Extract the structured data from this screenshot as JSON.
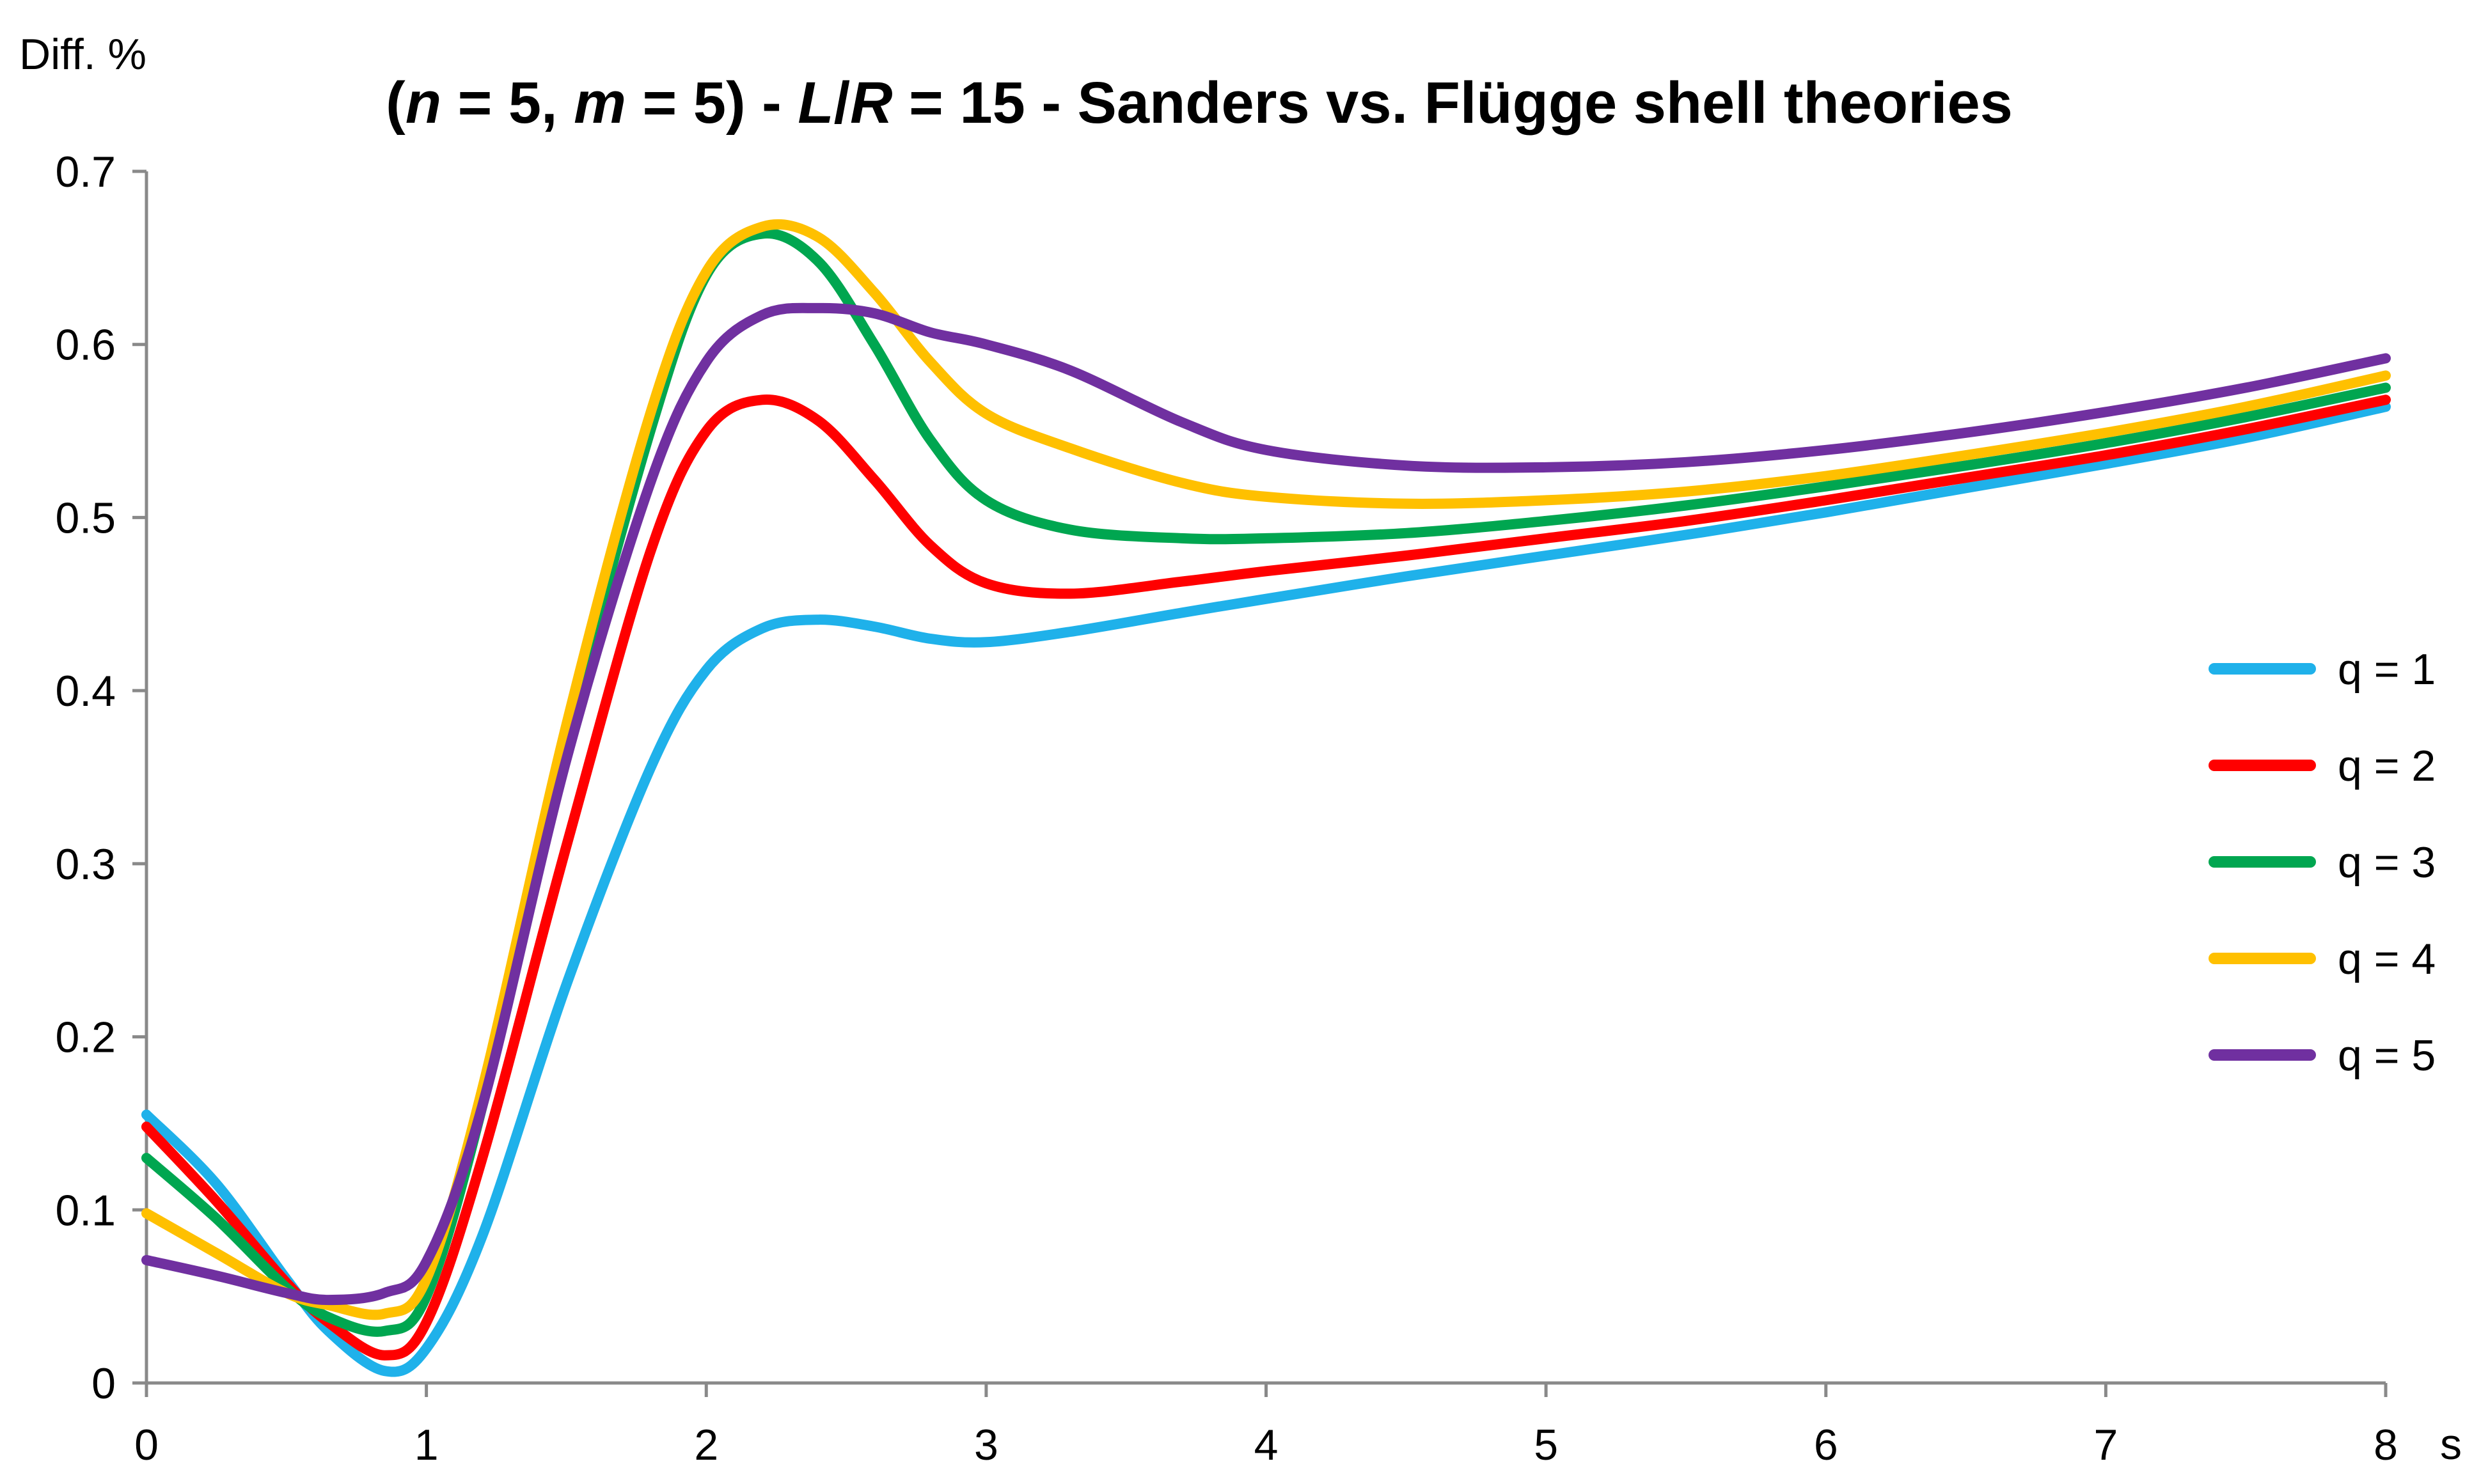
{
  "chart_data": {
    "type": "line",
    "title_parts": [
      {
        "text": "(",
        "italic": false
      },
      {
        "text": "n",
        "italic": true
      },
      {
        "text": " = 5, ",
        "italic": false
      },
      {
        "text": "m",
        "italic": true
      },
      {
        "text": " = 5) - ",
        "italic": false
      },
      {
        "text": "L",
        "italic": true
      },
      {
        "text": "/",
        "italic": false
      },
      {
        "text": "R",
        "italic": true
      },
      {
        "text": " = 15 - Sanders vs. Flügge shell theories",
        "italic": false
      }
    ],
    "xlabel": "s",
    "ylabel": "Diff. %",
    "xlim": [
      0,
      8
    ],
    "ylim": [
      0,
      0.7
    ],
    "x_ticks": [
      "0",
      "1",
      "2",
      "3",
      "4",
      "5",
      "6",
      "7",
      "8"
    ],
    "y_ticks": [
      "0",
      "0.1",
      "0.2",
      "0.3",
      "0.4",
      "0.5",
      "0.6",
      "0.7"
    ],
    "grid": false,
    "legend_position": "right",
    "x": [
      0,
      0.25,
      0.5,
      0.65,
      0.85,
      1.0,
      1.2,
      1.5,
      1.8,
      2.0,
      2.2,
      2.4,
      2.6,
      2.8,
      3.0,
      3.3,
      3.7,
      4.0,
      4.5,
      5.0,
      5.5,
      6.0,
      6.5,
      7.0,
      7.5,
      8.0
    ],
    "series": [
      {
        "name": "q = 1",
        "color": "#1FB1EA",
        "values": [
          0.155,
          0.115,
          0.06,
          0.03,
          0.007,
          0.02,
          0.085,
          0.23,
          0.355,
          0.412,
          0.436,
          0.441,
          0.437,
          0.43,
          0.428,
          0.434,
          0.445,
          0.453,
          0.466,
          0.478,
          0.49,
          0.503,
          0.517,
          0.531,
          0.546,
          0.564
        ]
      },
      {
        "name": "q = 2",
        "color": "#FF0000",
        "values": [
          0.148,
          0.105,
          0.058,
          0.035,
          0.016,
          0.035,
          0.13,
          0.31,
          0.48,
          0.55,
          0.568,
          0.556,
          0.522,
          0.484,
          0.462,
          0.456,
          0.463,
          0.469,
          0.478,
          0.488,
          0.498,
          0.51,
          0.523,
          0.536,
          0.551,
          0.568
        ]
      },
      {
        "name": "q = 3",
        "color": "#00A650",
        "values": [
          0.13,
          0.095,
          0.055,
          0.038,
          0.03,
          0.05,
          0.16,
          0.37,
          0.55,
          0.64,
          0.664,
          0.648,
          0.6,
          0.545,
          0.51,
          0.493,
          0.488,
          0.488,
          0.491,
          0.498,
          0.507,
          0.518,
          0.53,
          0.543,
          0.558,
          0.575
        ]
      },
      {
        "name": "q = 4",
        "color": "#FFC000",
        "values": [
          0.098,
          0.075,
          0.052,
          0.045,
          0.04,
          0.06,
          0.17,
          0.38,
          0.56,
          0.642,
          0.668,
          0.662,
          0.63,
          0.59,
          0.56,
          0.54,
          0.52,
          0.512,
          0.508,
          0.51,
          0.515,
          0.524,
          0.536,
          0.549,
          0.564,
          0.582
        ]
      },
      {
        "name": "q = 5",
        "color": "#7030A0",
        "values": [
          0.071,
          0.062,
          0.052,
          0.048,
          0.052,
          0.07,
          0.16,
          0.36,
          0.52,
          0.59,
          0.617,
          0.621,
          0.618,
          0.607,
          0.6,
          0.585,
          0.555,
          0.539,
          0.53,
          0.529,
          0.532,
          0.539,
          0.549,
          0.561,
          0.575,
          0.592
        ]
      }
    ]
  }
}
